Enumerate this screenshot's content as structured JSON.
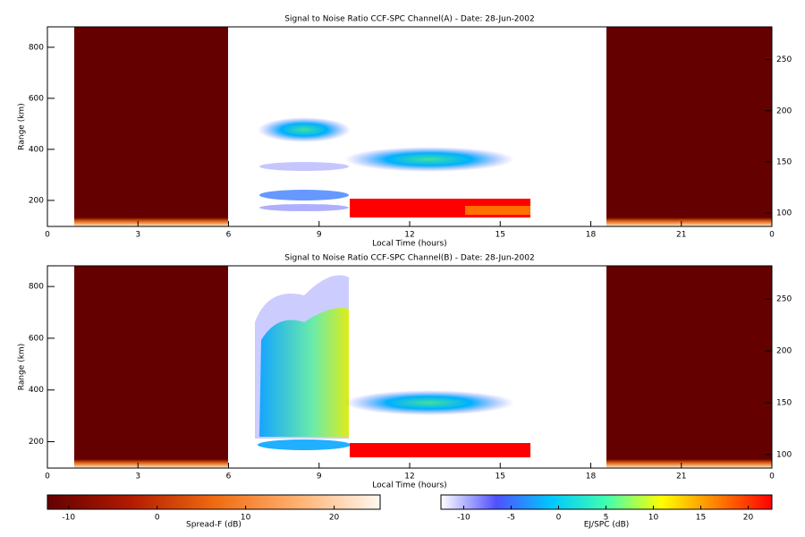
{
  "chart_data": [
    {
      "type": "heatmap",
      "title": "Signal to Noise Ratio CCF-SPC Channel(A) - Date: 28-Jun-2002",
      "x_label": "Local Time (hours)",
      "y_label": "Range (km)",
      "xlim": [
        0,
        24
      ],
      "xticks": [
        0,
        3,
        6,
        9,
        12,
        15,
        18,
        21,
        {
          "value": 24,
          "label": "0"
        }
      ],
      "ylim": [
        98,
        880
      ],
      "yticks": [
        200,
        400,
        600,
        800
      ],
      "y2lim": [
        87,
        282
      ],
      "y2ticks": [
        100,
        150,
        200,
        250
      ]
    },
    {
      "type": "heatmap",
      "title": "Signal to Noise Ratio CCF-SPC Channel(B) - Date: 28-Jun-2002",
      "x_label": "Local Time (hours)",
      "y_label": "Range (km)",
      "xlim": [
        0,
        24
      ],
      "xticks": [
        0,
        3,
        6,
        9,
        12,
        15,
        18,
        21,
        {
          "value": 24,
          "label": "0"
        }
      ],
      "ylim": [
        98,
        880
      ],
      "yticks": [
        200,
        400,
        600,
        800
      ],
      "y2lim": [
        87,
        282
      ],
      "y2ticks": [
        100,
        150,
        200,
        250
      ]
    },
    {
      "type": "colorbar",
      "label": "Spread-F (dB)",
      "xlim": [
        -12.4,
        25.2
      ],
      "xticks": [
        -10,
        0,
        10,
        20
      ],
      "colors": [
        "#640000",
        "#b21a00",
        "#f06a10",
        "#ffb070",
        "#fff8f0"
      ]
    },
    {
      "type": "colorbar",
      "label": "EJ/SPC (dB)",
      "xlim": [
        -12.4,
        22.5
      ],
      "xticks": [
        -10,
        -5,
        0,
        5,
        10,
        15,
        20
      ],
      "colors": [
        "#ffffff",
        "#5050ff",
        "#00c8ff",
        "#40ffb0",
        "#ffff00",
        "#ff8000",
        "#ff0000"
      ]
    }
  ]
}
